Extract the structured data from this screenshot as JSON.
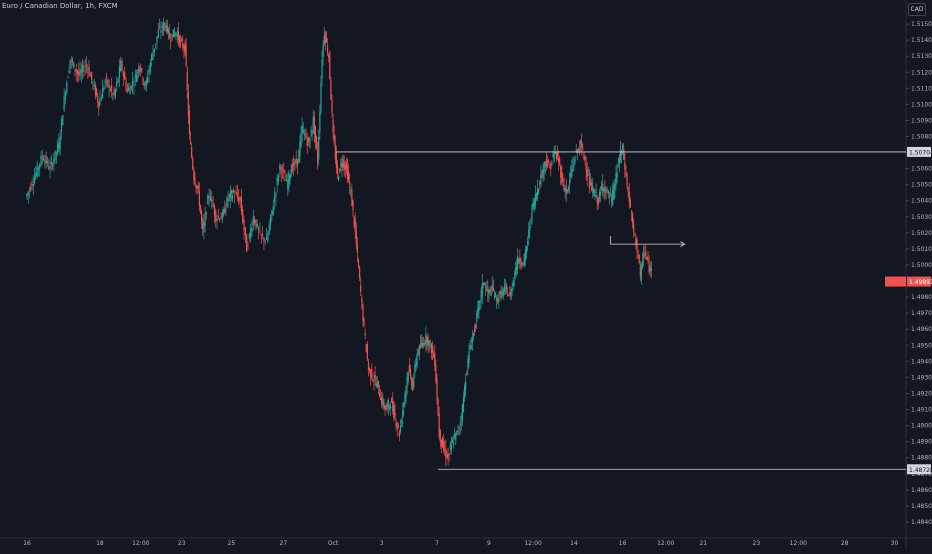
{
  "header": {
    "symbol_title": "Euro / Canadian Dollar, 1h, FXCM",
    "currency": "CAD"
  },
  "chart_data": {
    "type": "candlestick",
    "ylim": [
      1.483,
      1.5165
    ],
    "y_ticks": [
      "1.51500",
      "1.51400",
      "1.51300",
      "1.51200",
      "1.51100",
      "1.51000",
      "1.50900",
      "1.50800",
      "1.50700",
      "1.50600",
      "1.50500",
      "1.50400",
      "1.50300",
      "1.50200",
      "1.50100",
      "1.50000",
      "1.49900",
      "1.49800",
      "1.49700",
      "1.49600",
      "1.49500",
      "1.49400",
      "1.49300",
      "1.49200",
      "1.49100",
      "1.49000",
      "1.48900",
      "1.48800",
      "1.48700",
      "1.48600",
      "1.48500",
      "1.48400"
    ],
    "x_ticks": [
      "16",
      "18",
      "12:00",
      "23",
      "25",
      "27",
      "Oct",
      "3",
      "7",
      "9",
      "12:00",
      "14",
      "16",
      "12:00",
      "21",
      "23",
      "12:00",
      "28",
      "30"
    ],
    "x_tick_index": [
      0,
      66,
      103,
      140,
      185,
      232,
      277,
      321,
      371,
      418,
      458,
      495,
      539,
      578,
      612,
      660,
      698,
      740,
      785
    ],
    "series_path": [
      [
        0,
        1.5042
      ],
      [
        8,
        1.5055
      ],
      [
        15,
        1.5068
      ],
      [
        22,
        1.506
      ],
      [
        30,
        1.5075
      ],
      [
        36,
        1.511
      ],
      [
        40,
        1.5128
      ],
      [
        48,
        1.5118
      ],
      [
        55,
        1.5125
      ],
      [
        62,
        1.511
      ],
      [
        66,
        1.51
      ],
      [
        72,
        1.5115
      ],
      [
        80,
        1.5105
      ],
      [
        86,
        1.5125
      ],
      [
        92,
        1.5108
      ],
      [
        98,
        1.5115
      ],
      [
        103,
        1.5125
      ],
      [
        108,
        1.511
      ],
      [
        114,
        1.513
      ],
      [
        120,
        1.5145
      ],
      [
        126,
        1.515
      ],
      [
        130,
        1.5142
      ],
      [
        136,
        1.5145
      ],
      [
        140,
        1.5138
      ],
      [
        144,
        1.5135
      ],
      [
        148,
        1.508
      ],
      [
        152,
        1.5055
      ],
      [
        156,
        1.5045
      ],
      [
        160,
        1.502
      ],
      [
        166,
        1.5045
      ],
      [
        172,
        1.503
      ],
      [
        178,
        1.503
      ],
      [
        183,
        1.5042
      ],
      [
        188,
        1.5045
      ],
      [
        194,
        1.504
      ],
      [
        200,
        1.501
      ],
      [
        206,
        1.503
      ],
      [
        212,
        1.5018
      ],
      [
        218,
        1.5015
      ],
      [
        224,
        1.5038
      ],
      [
        230,
        1.5062
      ],
      [
        236,
        1.505
      ],
      [
        240,
        1.506
      ],
      [
        246,
        1.5065
      ],
      [
        250,
        1.5085
      ],
      [
        256,
        1.5075
      ],
      [
        260,
        1.509
      ],
      [
        264,
        1.5065
      ],
      [
        268,
        1.513
      ],
      [
        270,
        1.5145
      ],
      [
        274,
        1.513
      ],
      [
        278,
        1.508
      ],
      [
        282,
        1.5055
      ],
      [
        286,
        1.5065
      ],
      [
        290,
        1.506
      ],
      [
        294,
        1.5045
      ],
      [
        298,
        1.502
      ],
      [
        302,
        1.499
      ],
      [
        306,
        1.496
      ],
      [
        310,
        1.4935
      ],
      [
        314,
        1.493
      ],
      [
        318,
        1.4925
      ],
      [
        322,
        1.4915
      ],
      [
        326,
        1.491
      ],
      [
        330,
        1.4915
      ],
      [
        334,
        1.4905
      ],
      [
        338,
        1.4895
      ],
      [
        342,
        1.4915
      ],
      [
        346,
        1.4935
      ],
      [
        350,
        1.4925
      ],
      [
        354,
        1.4945
      ],
      [
        358,
        1.495
      ],
      [
        362,
        1.4955
      ],
      [
        366,
        1.495
      ],
      [
        370,
        1.494
      ],
      [
        374,
        1.4895
      ],
      [
        378,
        1.4885
      ],
      [
        382,
        1.488
      ],
      [
        386,
        1.489
      ],
      [
        390,
        1.4895
      ],
      [
        394,
        1.4905
      ],
      [
        398,
        1.493
      ],
      [
        402,
        1.495
      ],
      [
        406,
        1.496
      ],
      [
        410,
        1.4975
      ],
      [
        414,
        1.499
      ],
      [
        418,
        1.4982
      ],
      [
        422,
        1.4985
      ],
      [
        426,
        1.4978
      ],
      [
        430,
        1.4982
      ],
      [
        434,
        1.4985
      ],
      [
        438,
        1.498
      ],
      [
        442,
        1.4995
      ],
      [
        446,
        1.5005
      ],
      [
        450,
        1.5
      ],
      [
        454,
        1.5015
      ],
      [
        458,
        1.5035
      ],
      [
        462,
        1.5045
      ],
      [
        466,
        1.5055
      ],
      [
        470,
        1.5065
      ],
      [
        474,
        1.506
      ],
      [
        478,
        1.507
      ],
      [
        482,
        1.5065
      ],
      [
        486,
        1.505
      ],
      [
        490,
        1.5045
      ],
      [
        494,
        1.506
      ],
      [
        498,
        1.507
      ],
      [
        502,
        1.5075
      ],
      [
        506,
        1.5065
      ],
      [
        510,
        1.505
      ],
      [
        514,
        1.5045
      ],
      [
        518,
        1.504
      ],
      [
        522,
        1.505
      ],
      [
        526,
        1.5045
      ],
      [
        530,
        1.504
      ],
      [
        534,
        1.5055
      ],
      [
        538,
        1.507
      ],
      [
        540,
        1.5072
      ],
      [
        542,
        1.506
      ],
      [
        546,
        1.504
      ],
      [
        550,
        1.502
      ],
      [
        554,
        1.5008
      ],
      [
        556,
        1.499
      ],
      [
        558,
        1.5005
      ],
      [
        560,
        1.5008
      ],
      [
        563,
        1.5
      ],
      [
        566,
        1.4995
      ]
    ],
    "horizontal_levels": [
      {
        "label": "1.50704",
        "value": 1.50704
      },
      {
        "label": "1.48728",
        "value": 1.48728
      }
    ],
    "current_price": {
      "label": "1.49897",
      "value": 1.49897
    },
    "arrow_level": 1.5013
  }
}
